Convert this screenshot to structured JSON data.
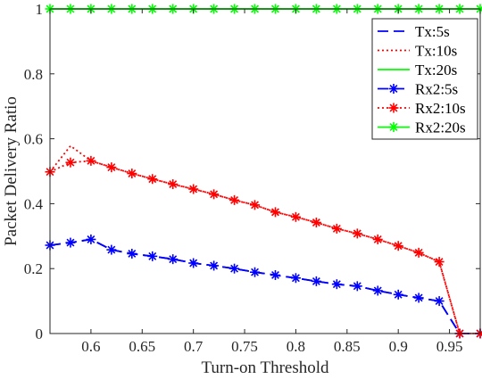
{
  "chart_data": {
    "type": "line",
    "title": "",
    "xlabel": "Turn-on Threshold",
    "ylabel": "Packet Delivery Ratio",
    "xlim": [
      0.56,
      0.98
    ],
    "ylim": [
      0,
      1
    ],
    "grid": false,
    "legend_position": "top-right",
    "xticks": [
      0.6,
      0.65,
      0.7,
      0.75,
      0.8,
      0.85,
      0.9,
      0.95
    ],
    "xtick_labels": [
      "0.6",
      "0.65",
      "0.7",
      "0.75",
      "0.8",
      "0.85",
      "0.9",
      "0.95"
    ],
    "yticks": [
      0,
      0.2,
      0.4,
      0.6,
      0.8,
      1
    ],
    "ytick_labels": [
      "0",
      "0.2",
      "0.4",
      "0.6",
      "0.8",
      "1"
    ],
    "x": [
      0.56,
      0.58,
      0.6,
      0.62,
      0.64,
      0.66,
      0.68,
      0.7,
      0.72,
      0.74,
      0.76,
      0.78,
      0.8,
      0.82,
      0.84,
      0.86,
      0.88,
      0.9,
      0.92,
      0.94,
      0.96,
      0.98
    ],
    "series": [
      {
        "name": "Tx:5s",
        "color": "#0000ff",
        "dash": "dashed",
        "marker": "none",
        "values": [
          0.272,
          0.28,
          0.29,
          0.258,
          0.246,
          0.238,
          0.229,
          0.217,
          0.209,
          0.2,
          0.189,
          0.18,
          0.171,
          0.161,
          0.152,
          0.146,
          0.132,
          0.12,
          0.11,
          0.1,
          0.0,
          0.0
        ]
      },
      {
        "name": "Tx:10s",
        "color": "#ff0000",
        "dash": "dotted",
        "marker": "none",
        "values": [
          0.498,
          0.578,
          0.532,
          0.512,
          0.493,
          0.476,
          0.46,
          0.445,
          0.429,
          0.411,
          0.396,
          0.374,
          0.359,
          0.342,
          0.323,
          0.308,
          0.29,
          0.27,
          0.249,
          0.221,
          0.0,
          0.0
        ]
      },
      {
        "name": "Tx:20s",
        "color": "#00ff00",
        "dash": "solid",
        "marker": "none",
        "values": [
          1,
          1,
          1,
          1,
          1,
          1,
          1,
          1,
          1,
          1,
          1,
          1,
          1,
          1,
          1,
          1,
          1,
          1,
          1,
          1,
          1,
          1
        ]
      },
      {
        "name": "Rx2:5s",
        "color": "#0000ff",
        "dash": "dashed",
        "marker": "asterisk",
        "values": [
          0.272,
          0.28,
          0.29,
          0.258,
          0.246,
          0.238,
          0.229,
          0.217,
          0.209,
          0.2,
          0.189,
          0.18,
          0.171,
          0.161,
          0.152,
          0.146,
          0.132,
          0.12,
          0.11,
          0.1,
          0.0,
          0.0
        ]
      },
      {
        "name": "Rx2:10s",
        "color": "#ff0000",
        "dash": "dotted",
        "marker": "asterisk",
        "values": [
          0.498,
          0.527,
          0.532,
          0.512,
          0.493,
          0.476,
          0.46,
          0.445,
          0.429,
          0.411,
          0.396,
          0.374,
          0.359,
          0.342,
          0.323,
          0.308,
          0.29,
          0.27,
          0.249,
          0.221,
          0.0,
          0.0
        ]
      },
      {
        "name": "Rx2:20s",
        "color": "#00ff00",
        "dash": "solid",
        "marker": "asterisk",
        "values": [
          1,
          1,
          1,
          1,
          1,
          1,
          1,
          1,
          1,
          1,
          1,
          1,
          1,
          1,
          1,
          1,
          1,
          1,
          1,
          1,
          1,
          1
        ]
      }
    ]
  }
}
